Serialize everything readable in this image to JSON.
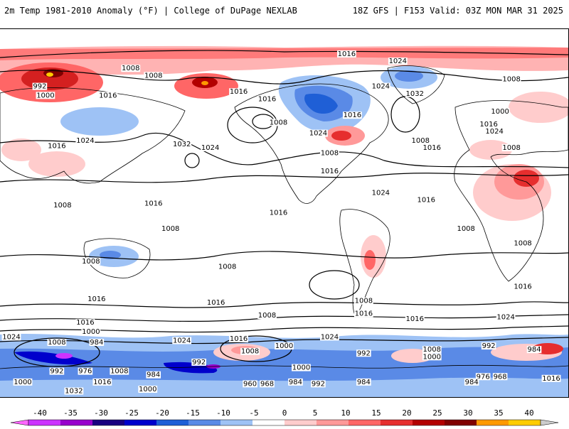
{
  "header": {
    "title": "2m Temp 1981-2010 Anomaly (°F) | College of DuPage NEXLAB",
    "run_info": "18Z GFS | F153 Valid: 03Z MON MAR 31 2025"
  },
  "colorbar": {
    "ticks": [
      -40,
      -35,
      -30,
      -25,
      -20,
      -15,
      -10,
      -5,
      0,
      5,
      10,
      15,
      20,
      25,
      30,
      35,
      40
    ],
    "colors": [
      "#ff66ff",
      "#cc33ff",
      "#9900cc",
      "#1a0080",
      "#0000cc",
      "#1f5fd6",
      "#5a8ae6",
      "#9ec2f5",
      "#ffffff",
      "#ffcccc",
      "#ff9999",
      "#ff6666",
      "#e62e2e",
      "#b30000",
      "#800000",
      "#ff9900",
      "#ffcc00",
      "#cccccc"
    ]
  },
  "isobars": [
    {
      "value": "1016"
    },
    {
      "value": "1024"
    },
    {
      "value": "1008"
    },
    {
      "value": "992"
    },
    {
      "value": "1000"
    },
    {
      "value": "1032"
    },
    {
      "value": "984"
    },
    {
      "value": "976"
    },
    {
      "value": "968"
    },
    {
      "value": "960"
    }
  ],
  "pressure_labels": [
    {
      "text": "1016",
      "lon": 0.61,
      "lat": 0.055
    },
    {
      "text": "1024",
      "lon": 0.7,
      "lat": 0.075
    },
    {
      "text": "1008",
      "lon": 0.23,
      "lat": 0.095
    },
    {
      "text": "1008",
      "lon": 0.27,
      "lat": 0.115
    },
    {
      "text": "992",
      "lon": 0.07,
      "lat": 0.145
    },
    {
      "text": "1000",
      "lon": 0.08,
      "lat": 0.17
    },
    {
      "text": "1016",
      "lon": 0.19,
      "lat": 0.17
    },
    {
      "text": "1016",
      "lon": 0.42,
      "lat": 0.16
    },
    {
      "text": "1016",
      "lon": 0.47,
      "lat": 0.18
    },
    {
      "text": "1024",
      "lon": 0.67,
      "lat": 0.145
    },
    {
      "text": "1032",
      "lon": 0.73,
      "lat": 0.165
    },
    {
      "text": "1008",
      "lon": 0.9,
      "lat": 0.125
    },
    {
      "text": "1016",
      "lon": 0.62,
      "lat": 0.225
    },
    {
      "text": "1008",
      "lon": 0.49,
      "lat": 0.245
    },
    {
      "text": "1024",
      "lon": 0.56,
      "lat": 0.275
    },
    {
      "text": "1008",
      "lon": 0.74,
      "lat": 0.295
    },
    {
      "text": "1016",
      "lon": 0.76,
      "lat": 0.315
    },
    {
      "text": "1000",
      "lon": 0.88,
      "lat": 0.215
    },
    {
      "text": "1016",
      "lon": 0.86,
      "lat": 0.25
    },
    {
      "text": "1024",
      "lon": 0.87,
      "lat": 0.27
    },
    {
      "text": "1008",
      "lon": 0.9,
      "lat": 0.315
    },
    {
      "text": "1024",
      "lon": 0.15,
      "lat": 0.295
    },
    {
      "text": "1016",
      "lon": 0.1,
      "lat": 0.31
    },
    {
      "text": "1032",
      "lon": 0.32,
      "lat": 0.305
    },
    {
      "text": "1024",
      "lon": 0.37,
      "lat": 0.315
    },
    {
      "text": "1008",
      "lon": 0.58,
      "lat": 0.33
    },
    {
      "text": "1016",
      "lon": 0.58,
      "lat": 0.38
    },
    {
      "text": "1024",
      "lon": 0.67,
      "lat": 0.44
    },
    {
      "text": "1016",
      "lon": 0.75,
      "lat": 0.46
    },
    {
      "text": "1016",
      "lon": 0.27,
      "lat": 0.47
    },
    {
      "text": "1016",
      "lon": 0.49,
      "lat": 0.495
    },
    {
      "text": "1008",
      "lon": 0.11,
      "lat": 0.475
    },
    {
      "text": "1008",
      "lon": 0.3,
      "lat": 0.54
    },
    {
      "text": "1008",
      "lon": 0.82,
      "lat": 0.54
    },
    {
      "text": "1008",
      "lon": 0.92,
      "lat": 0.58
    },
    {
      "text": "1008",
      "lon": 0.16,
      "lat": 0.63
    },
    {
      "text": "1008",
      "lon": 0.4,
      "lat": 0.645
    },
    {
      "text": "1016",
      "lon": 0.92,
      "lat": 0.7
    },
    {
      "text": "1016",
      "lon": 0.17,
      "lat": 0.735
    },
    {
      "text": "1016",
      "lon": 0.38,
      "lat": 0.745
    },
    {
      "text": "1008",
      "lon": 0.64,
      "lat": 0.74
    },
    {
      "text": "1016",
      "lon": 0.64,
      "lat": 0.775
    },
    {
      "text": "1016",
      "lon": 0.73,
      "lat": 0.79
    },
    {
      "text": "1024",
      "lon": 0.89,
      "lat": 0.785
    },
    {
      "text": "1008",
      "lon": 0.47,
      "lat": 0.78
    },
    {
      "text": "1016",
      "lon": 0.15,
      "lat": 0.8
    },
    {
      "text": "1000",
      "lon": 0.16,
      "lat": 0.825
    },
    {
      "text": "1024",
      "lon": 0.02,
      "lat": 0.84
    },
    {
      "text": "984",
      "lon": 0.17,
      "lat": 0.855
    },
    {
      "text": "1008",
      "lon": 0.1,
      "lat": 0.855
    },
    {
      "text": "1024",
      "lon": 0.32,
      "lat": 0.85
    },
    {
      "text": "1016",
      "lon": 0.42,
      "lat": 0.845
    },
    {
      "text": "1024",
      "lon": 0.58,
      "lat": 0.84
    },
    {
      "text": "1000",
      "lon": 0.5,
      "lat": 0.865
    },
    {
      "text": "1008",
      "lon": 0.44,
      "lat": 0.88
    },
    {
      "text": "992",
      "lon": 0.35,
      "lat": 0.91
    },
    {
      "text": "1000",
      "lon": 0.53,
      "lat": 0.925
    },
    {
      "text": "992",
      "lon": 0.64,
      "lat": 0.885
    },
    {
      "text": "1008",
      "lon": 0.76,
      "lat": 0.875
    },
    {
      "text": "1000",
      "lon": 0.76,
      "lat": 0.895
    },
    {
      "text": "992",
      "lon": 0.86,
      "lat": 0.865
    },
    {
      "text": "984",
      "lon": 0.94,
      "lat": 0.875
    },
    {
      "text": "976",
      "lon": 0.15,
      "lat": 0.935
    },
    {
      "text": "1008",
      "lon": 0.21,
      "lat": 0.935
    },
    {
      "text": "984",
      "lon": 0.27,
      "lat": 0.945
    },
    {
      "text": "992",
      "lon": 0.1,
      "lat": 0.935
    },
    {
      "text": "1016",
      "lon": 0.18,
      "lat": 0.965
    },
    {
      "text": "1000",
      "lon": 0.04,
      "lat": 0.965
    },
    {
      "text": "960",
      "lon": 0.44,
      "lat": 0.97
    },
    {
      "text": "968",
      "lon": 0.47,
      "lat": 0.97
    },
    {
      "text": "984",
      "lon": 0.52,
      "lat": 0.965
    },
    {
      "text": "992",
      "lon": 0.56,
      "lat": 0.97
    },
    {
      "text": "984",
      "lon": 0.64,
      "lat": 0.965
    },
    {
      "text": "976",
      "lon": 0.85,
      "lat": 0.95
    },
    {
      "text": "968",
      "lon": 0.88,
      "lat": 0.95
    },
    {
      "text": "1016",
      "lon": 0.97,
      "lat": 0.955
    },
    {
      "text": "984",
      "lon": 0.83,
      "lat": 0.965
    },
    {
      "text": "1000",
      "lon": 0.26,
      "lat": 0.985
    },
    {
      "text": "1032",
      "lon": 0.13,
      "lat": 0.99
    },
    {
      "text": "1024",
      "lon": 0.08,
      "lat": 1.0
    },
    {
      "text": "992",
      "lon": 0.32,
      "lat": 1.01
    },
    {
      "text": "976",
      "lon": 0.46,
      "lat": 1.0
    },
    {
      "text": "1008",
      "lon": 0.42,
      "lat": 1.03
    },
    {
      "text": "1000",
      "lon": 0.58,
      "lat": 1.03
    },
    {
      "text": "992",
      "lon": 0.78,
      "lat": 0.995
    },
    {
      "text": "1008",
      "lon": 0.87,
      "lat": 0.995
    },
    {
      "text": "1000",
      "lon": 0.92,
      "lat": 1.01
    },
    {
      "text": "1016",
      "lon": 0.1,
      "lat": 1.035
    }
  ]
}
